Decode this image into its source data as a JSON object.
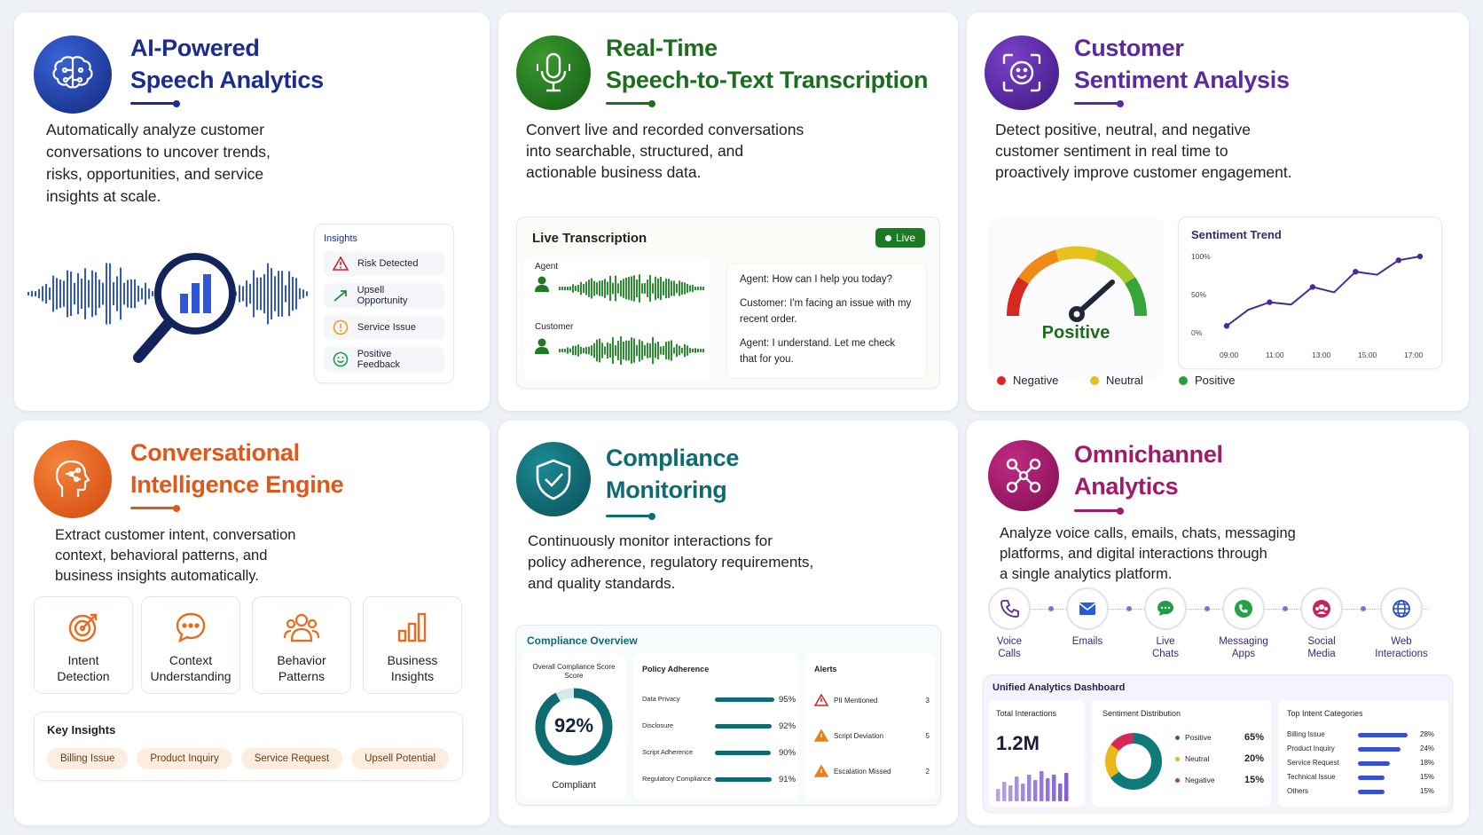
{
  "colors": {
    "navy": "#1b2d8f",
    "green": "#1c6e1e",
    "purple": "#5b2a9d",
    "orange": "#e8611c",
    "teal": "#0e6b74",
    "magenta": "#a0196a"
  },
  "speech": {
    "title_l1": "AI-Powered",
    "title_l2": "Speech Analytics",
    "desc": [
      "Automatically analyze customer",
      "conversations to uncover trends,",
      "risks, opportunities, and service",
      "insights at scale."
    ],
    "insights_title": "Insights",
    "insights": [
      {
        "icon": "warning-triangle-icon",
        "label": "Risk Detected"
      },
      {
        "icon": "trend-up-arrow-icon",
        "label": "Upsell Opportunity"
      },
      {
        "icon": "exclamation-circle-icon",
        "label": "Service Issue"
      },
      {
        "icon": "smiley-icon",
        "label": "Positive Feedback"
      }
    ]
  },
  "transcription": {
    "title_l1": "Real-Time",
    "title_l2": "Speech-to-Text Transcription",
    "desc": [
      "Convert live and recorded conversations",
      "into searchable, structured, and",
      "actionable business data."
    ],
    "panel_title": "Live Transcription",
    "live_badge": "Live",
    "agent_label": "Agent",
    "customer_label": "Customer",
    "lines": [
      {
        "speaker": "Agent:",
        "text": " How can I help you today?"
      },
      {
        "speaker": "Customer:",
        "text": " I'm facing an issue with my recent order."
      },
      {
        "speaker": "Agent:",
        "text": " I understand. Let me check that for you."
      }
    ]
  },
  "sentiment": {
    "title_l1": "Customer",
    "title_l2": "Sentiment Analysis",
    "desc": [
      "Detect positive, neutral, and negative",
      "customer sentiment in real time to",
      "proactively improve customer engagement."
    ],
    "gauge_label": "Positive",
    "legend": [
      {
        "label": "Negative",
        "color": "#e02424"
      },
      {
        "label": "Neutral",
        "color": "#e3c11b"
      },
      {
        "label": "Positive",
        "color": "#2e9c3a"
      }
    ],
    "trend_title": "Sentiment Trend",
    "y_ticks": [
      "100%",
      "50%",
      "0%"
    ],
    "x_ticks": [
      "09:00",
      "11:00",
      "13:00",
      "15:00",
      "17:00"
    ]
  },
  "chart_data": {
    "type": "line",
    "title": "Sentiment Trend",
    "x": [
      "09:00",
      "10:00",
      "11:00",
      "12:00",
      "13:00",
      "14:00",
      "15:00",
      "16:00",
      "17:00",
      "17:30"
    ],
    "values": [
      9,
      30,
      40,
      37,
      60,
      53,
      80,
      76,
      95,
      100
    ],
    "ylim": [
      0,
      100
    ],
    "y_ticks": [
      "0%",
      "50%",
      "100%"
    ]
  },
  "conv": {
    "title_l1": "Conversational",
    "title_l2": "Intelligence Engine",
    "desc": [
      "Extract customer intent, conversation",
      "context, behavioral patterns, and",
      "business insights automatically."
    ],
    "tiles": [
      {
        "icon": "target-icon",
        "l1": "Intent",
        "l2": "Detection"
      },
      {
        "icon": "chat-bubble-icon",
        "l1": "Context",
        "l2": "Understanding"
      },
      {
        "icon": "people-icon",
        "l1": "Behavior",
        "l2": "Patterns"
      },
      {
        "icon": "bar-chart-icon",
        "l1": "Business",
        "l2": "Insights"
      }
    ],
    "key_title": "Key Insights",
    "chips": [
      "Billing Issue",
      "Product Inquiry",
      "Service Request",
      "Upsell Potential"
    ]
  },
  "compliance": {
    "title_l1": "Compliance",
    "title_l2": "Monitoring",
    "desc": [
      "Continuously monitor interactions for",
      "policy adherence, regulatory requirements,",
      "and quality standards."
    ],
    "overview_title": "Compliance Overview",
    "score_title_l1": "Overall Compliance Score",
    "score_title_l2": "Score",
    "score": "92%",
    "score_value": 0.92,
    "score_label": "Compliant",
    "policy_title": "Policy Adherence",
    "policies": [
      {
        "label": "Data Privacy",
        "value": "95%",
        "frac": 0.95
      },
      {
        "label": "Disclosure",
        "value": "92%",
        "frac": 0.92
      },
      {
        "label": "Script Adherence",
        "value": "90%",
        "frac": 0.9
      },
      {
        "label": "Regulatory Compliance",
        "value": "91%",
        "frac": 0.91
      }
    ],
    "alerts_title": "Alerts",
    "alerts": [
      {
        "label": "PII Mentioned",
        "count": "3",
        "color": "#d92121"
      },
      {
        "label": "Script Deviation",
        "count": "5",
        "color": "#ef7d18"
      },
      {
        "label": "Escalation Missed",
        "count": "2",
        "color": "#ef7d18"
      }
    ]
  },
  "omni": {
    "title_l1": "Omnichannel",
    "title_l2": "Analytics",
    "desc": [
      "Analyze voice calls, emails, chats, messaging",
      "platforms, and digital interactions through",
      "a single analytics platform."
    ],
    "channels": [
      {
        "icon": "phone-icon",
        "l1": "Voice",
        "l2": "Calls",
        "color": "#5b2a9d"
      },
      {
        "icon": "email-icon",
        "l1": "Emails",
        "l2": "",
        "color": "#2a5bd6"
      },
      {
        "icon": "live-chat-icon",
        "l1": "Live",
        "l2": "Chats",
        "color": "#1f9c4a"
      },
      {
        "icon": "messaging-app-icon",
        "l1": "Messaging",
        "l2": "Apps",
        "color": "#25a244"
      },
      {
        "icon": "social-media-icon",
        "l1": "Social",
        "l2": "Media",
        "color": "#c2245c"
      },
      {
        "icon": "globe-icon",
        "l1": "Web",
        "l2": "Interactions",
        "color": "#2a4fc2"
      }
    ],
    "dash_title": "Unified Analytics Dashboard",
    "total_title": "Total Interactions",
    "total_value": "1.2M",
    "dist_title": "Sentiment Distribution",
    "dist": [
      {
        "label": "Positive",
        "value": "65%",
        "frac": 0.65,
        "color": "#0f7a7a"
      },
      {
        "label": "Neutral",
        "value": "20%",
        "frac": 0.2,
        "color": "#e8b81a"
      },
      {
        "label": "Negative",
        "value": "15%",
        "frac": 0.15,
        "color": "#d32b55"
      }
    ],
    "intent_title": "Top Intent Categories",
    "intents": [
      {
        "label": "Billing Issue",
        "value": "28%",
        "frac": 0.28
      },
      {
        "label": "Product Inquiry",
        "value": "24%",
        "frac": 0.24
      },
      {
        "label": "Service Request",
        "value": "18%",
        "frac": 0.18
      },
      {
        "label": "Technical Issue",
        "value": "15%",
        "frac": 0.15
      },
      {
        "label": "Others",
        "value": "15%",
        "frac": 0.15
      }
    ]
  }
}
